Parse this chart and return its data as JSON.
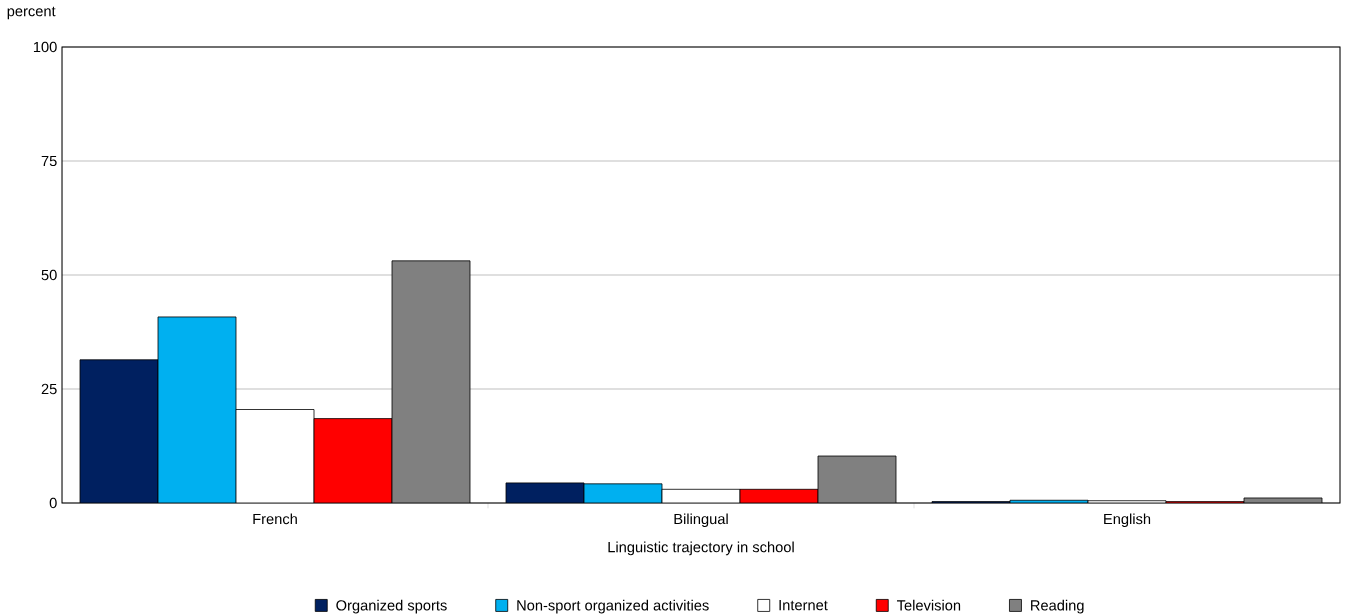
{
  "chart_data": {
    "type": "bar",
    "ylabel": "percent",
    "xlabel": "Linguistic trajectory in school",
    "categories": [
      "French",
      "Bilingual",
      "English"
    ],
    "series": [
      {
        "name": "Organized sports",
        "color": "#002060",
        "values": [
          31.4,
          4.4,
          0.3
        ]
      },
      {
        "name": "Non-sport organized activities",
        "color": "#00b0f0",
        "values": [
          40.8,
          4.2,
          0.6
        ]
      },
      {
        "name": "Internet",
        "color": "#ffffff",
        "values": [
          20.5,
          3.0,
          0.5
        ]
      },
      {
        "name": "Television",
        "color": "#ff0000",
        "values": [
          18.5,
          3.0,
          0.3
        ]
      },
      {
        "name": "Reading",
        "color": "#808080",
        "values": [
          53.1,
          10.3,
          1.1
        ]
      }
    ],
    "ylim": [
      0,
      100
    ],
    "yticks": [
      0,
      25,
      50,
      75,
      100
    ],
    "grid": "y",
    "legend": "bottom"
  }
}
